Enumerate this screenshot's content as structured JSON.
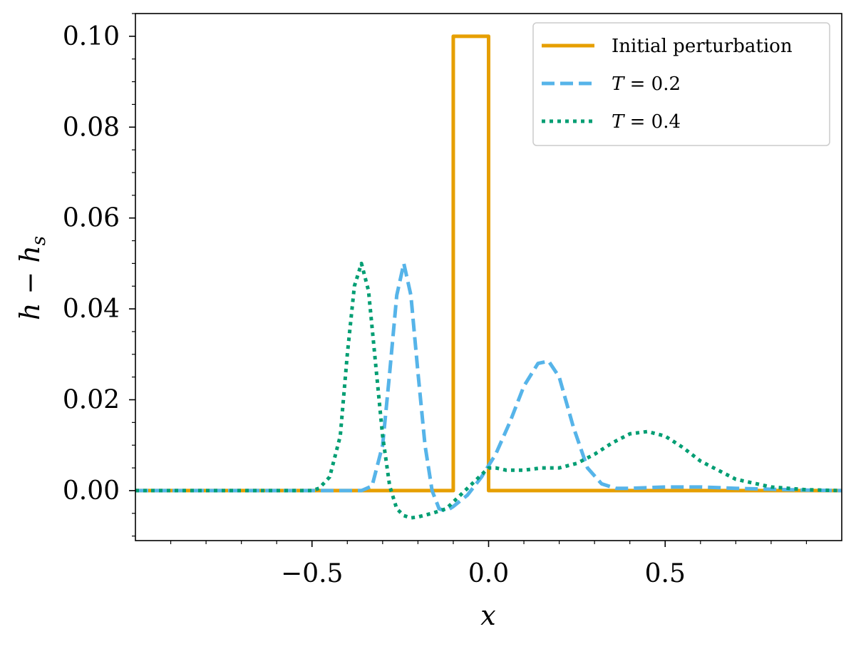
{
  "chart_data": {
    "type": "line",
    "xlabel": "x",
    "ylabel": "h − h_s",
    "xlim": [
      -1.0,
      1.0
    ],
    "ylim": [
      -0.011,
      0.105
    ],
    "x_ticks": [
      -0.5,
      0.0,
      0.5
    ],
    "x_tick_labels": [
      "−0.5",
      "0.0",
      "0.5"
    ],
    "y_ticks": [
      0.0,
      0.02,
      0.04,
      0.06,
      0.08,
      0.1
    ],
    "y_tick_labels": [
      "0.00",
      "0.02",
      "0.04",
      "0.06",
      "0.08",
      "0.10"
    ],
    "grid": false,
    "legend_position": "top-right",
    "series": [
      {
        "name": "Initial perturbation",
        "color": "#E69F00",
        "dash": "solid",
        "x": [
          -1.0,
          -0.13,
          -0.1,
          -0.1,
          0.0,
          0.0,
          1.0
        ],
        "y": [
          0.0,
          0.0,
          0.0,
          0.1,
          0.1,
          0.0,
          0.0
        ]
      },
      {
        "name": "T = 0.2",
        "color": "#56B4E9",
        "dash": "dashed",
        "x": [
          -1.0,
          -0.5,
          -0.36,
          -0.33,
          -0.3,
          -0.28,
          -0.26,
          -0.24,
          -0.22,
          -0.2,
          -0.18,
          -0.16,
          -0.14,
          -0.12,
          -0.1,
          -0.06,
          -0.02,
          0.02,
          0.06,
          0.1,
          0.14,
          0.17,
          0.2,
          0.24,
          0.28,
          0.32,
          0.36,
          0.4,
          0.5,
          0.6,
          0.7,
          0.8,
          0.9,
          1.0
        ],
        "y": [
          0.0,
          0.0,
          0.0,
          0.001,
          0.01,
          0.026,
          0.043,
          0.05,
          0.043,
          0.026,
          0.01,
          0.0,
          -0.004,
          -0.0045,
          -0.0035,
          -0.001,
          0.003,
          0.008,
          0.015,
          0.023,
          0.028,
          0.0285,
          0.025,
          0.014,
          0.005,
          0.0015,
          0.0005,
          0.0005,
          0.0008,
          0.0008,
          0.0005,
          0.0003,
          0.0001,
          0.0
        ]
      },
      {
        "name": "T = 0.4",
        "color": "#009E73",
        "dash": "dotted",
        "x": [
          -1.0,
          -0.5,
          -0.48,
          -0.45,
          -0.42,
          -0.4,
          -0.38,
          -0.36,
          -0.34,
          -0.32,
          -0.3,
          -0.28,
          -0.26,
          -0.24,
          -0.22,
          -0.2,
          -0.16,
          -0.12,
          -0.08,
          -0.04,
          0.0,
          0.02,
          0.05,
          0.1,
          0.15,
          0.2,
          0.25,
          0.3,
          0.35,
          0.4,
          0.45,
          0.5,
          0.55,
          0.6,
          0.7,
          0.8,
          0.9,
          1.0
        ],
        "y": [
          0.0,
          0.0,
          0.0005,
          0.003,
          0.012,
          0.03,
          0.045,
          0.05,
          0.044,
          0.028,
          0.012,
          0.001,
          -0.004,
          -0.0055,
          -0.006,
          -0.0058,
          -0.005,
          -0.004,
          -0.001,
          0.002,
          0.005,
          0.005,
          0.0045,
          0.0045,
          0.005,
          0.005,
          0.006,
          0.008,
          0.0105,
          0.0125,
          0.013,
          0.012,
          0.0095,
          0.0065,
          0.0025,
          0.0008,
          0.0002,
          0.0
        ]
      }
    ]
  },
  "legend": {
    "entries": [
      {
        "label": "Initial perturbation",
        "prefix": "",
        "suffix": ""
      },
      {
        "label": "",
        "prefix": "T",
        "suffix": " = 0.2"
      },
      {
        "label": "",
        "prefix": "T",
        "suffix": " = 0.4"
      }
    ]
  },
  "axis_text": {
    "xlabel": "x",
    "ylabel_main": "h − h",
    "ylabel_sub": "s"
  }
}
